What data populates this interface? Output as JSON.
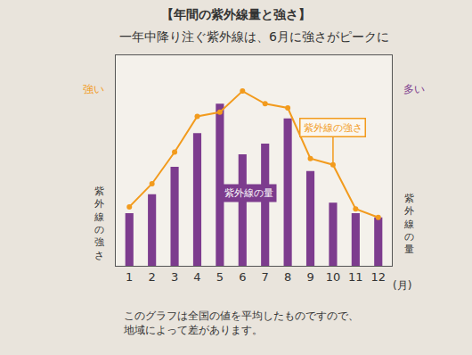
{
  "chart_data": {
    "type": "bar",
    "title": "【年間の紫外線量と強さ】",
    "subtitle": "一年中降り注ぐ紫外線は、6月に強さがピークに",
    "categories": [
      "1",
      "2",
      "3",
      "4",
      "5",
      "6",
      "7",
      "8",
      "9",
      "10",
      "11",
      "12"
    ],
    "x_label": "(月)",
    "y_label": "紫外線の量",
    "y_label_top": "多い",
    "y2_label": "紫外線の強さ",
    "y2_label_top": "強い",
    "series": [
      {
        "name": "紫外線の量",
        "type": "bar",
        "color": "#7d3c8e",
        "values": [
          25,
          34,
          47,
          63,
          77,
          53,
          58,
          70,
          45,
          30,
          25,
          23
        ]
      },
      {
        "name": "紫外線の強さ",
        "type": "line",
        "marker": "circle",
        "color": "#f29b1d",
        "axis": "y2",
        "values": [
          28,
          39,
          54,
          71,
          73,
          83,
          77,
          75,
          51,
          48,
          27,
          23
        ]
      }
    ],
    "ylim": [
      0,
      100
    ],
    "yticks": [],
    "y2lim": [
      0,
      100
    ],
    "y2ticks": [],
    "grid": false,
    "tick_labels": "x",
    "note": [
      "このグラフは全国の値を平均したものですので、",
      "地域によって差があります。"
    ]
  }
}
